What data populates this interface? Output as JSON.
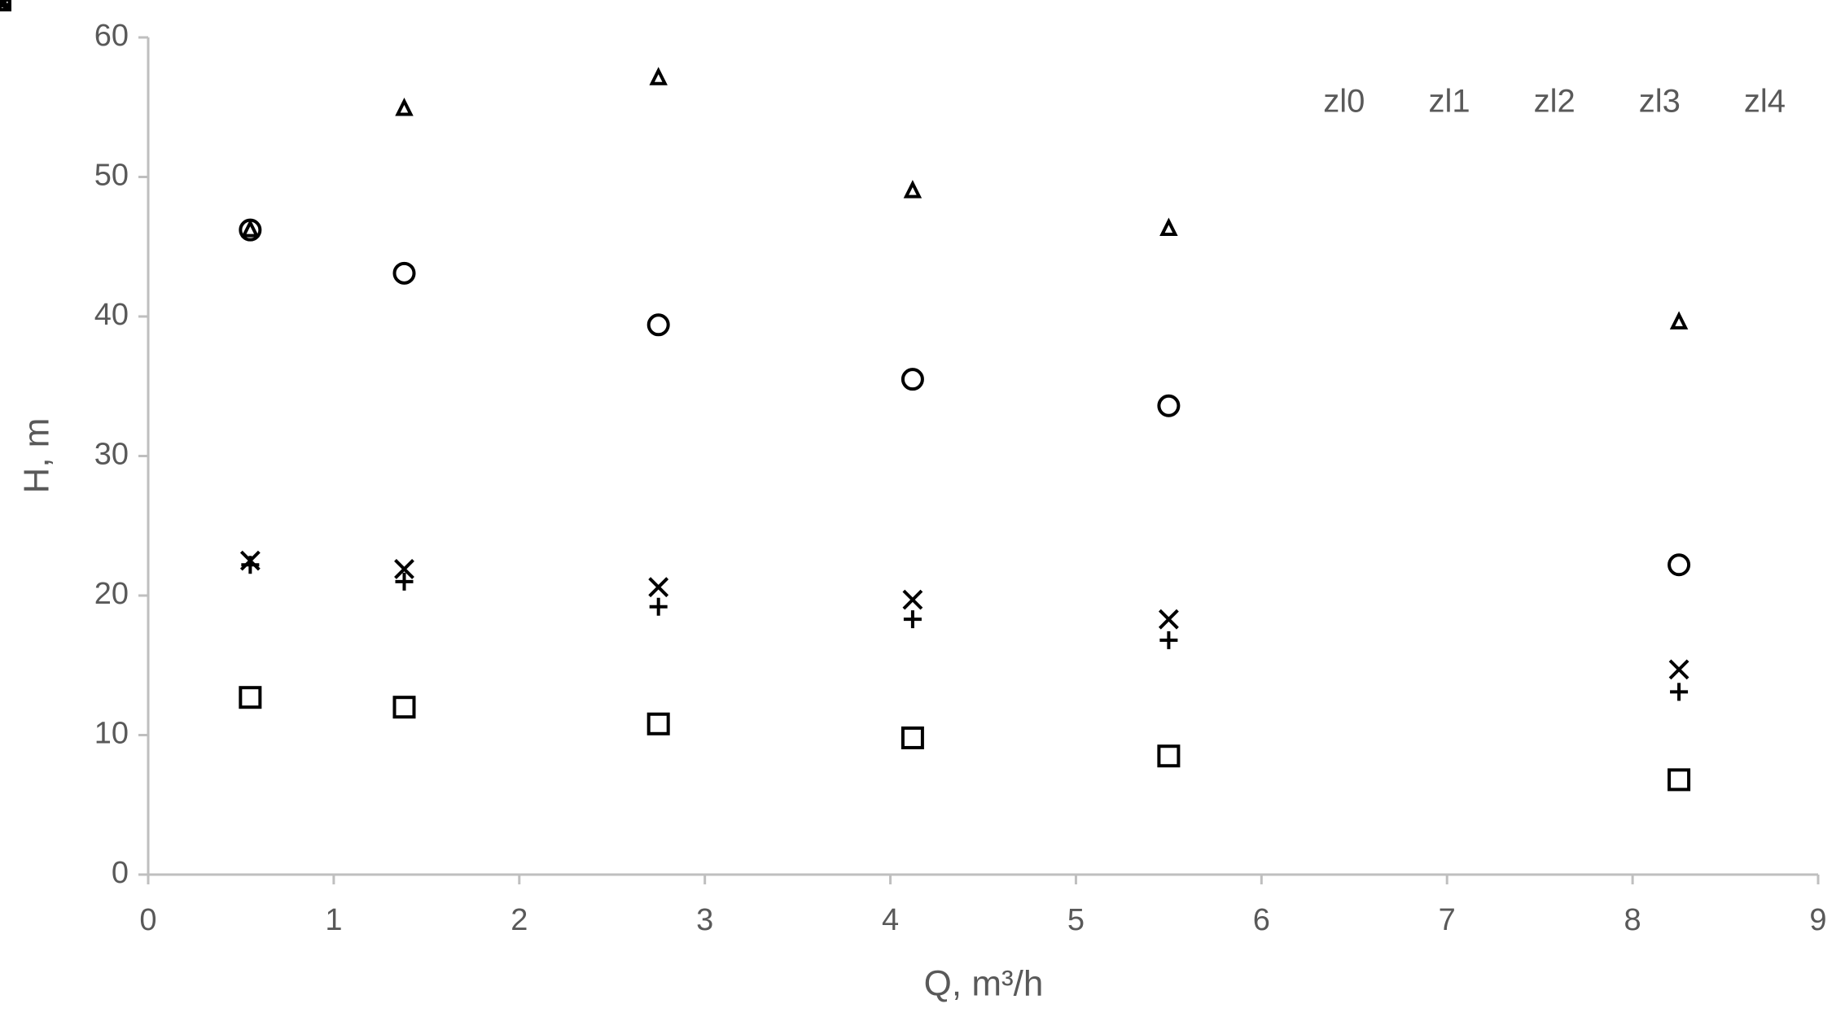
{
  "chart_data": {
    "type": "scatter",
    "x_label": "Q, m³/h",
    "y_label": "H, m",
    "xlim": [
      0,
      9
    ],
    "xticks": [
      0,
      1,
      2,
      3,
      4,
      5,
      6,
      7,
      8,
      9
    ],
    "ylim": [
      0,
      60
    ],
    "yticks": [
      0,
      10,
      20,
      30,
      40,
      50,
      60
    ],
    "grid": false,
    "legend": "top-right",
    "series": [
      {
        "name": "zl0",
        "marker": "plus",
        "color": "#000000",
        "x": [
          0.55,
          1.38,
          2.75,
          4.12,
          5.5,
          8.25
        ],
        "values": [
          22.2,
          21,
          19.2,
          18.3,
          16.8,
          13.1
        ]
      },
      {
        "name": "zl1",
        "marker": "triangle",
        "color": "#000000",
        "x": [
          0.55,
          1.38,
          2.75,
          4.12,
          5.5,
          8.25
        ],
        "values": [
          46.2,
          54.9,
          57.1,
          49,
          46.3,
          39.6
        ]
      },
      {
        "name": "zl2",
        "marker": "x",
        "color": "#000000",
        "x": [
          0.55,
          1.38,
          2.75,
          4.12,
          5.5,
          8.25
        ],
        "values": [
          22.5,
          21.9,
          20.6,
          19.7,
          18.3,
          14.7
        ]
      },
      {
        "name": "zl3",
        "marker": "circle",
        "color": "#000000",
        "x": [
          0.55,
          1.38,
          2.75,
          4.12,
          5.5,
          8.25
        ],
        "values": [
          46.2,
          43.1,
          39.4,
          35.5,
          33.6,
          22.2
        ]
      },
      {
        "name": "zl4",
        "marker": "square",
        "color": "#000000",
        "x": [
          0.55,
          1.38,
          2.75,
          4.12,
          5.5,
          8.25
        ],
        "values": [
          12.7,
          12,
          10.8,
          9.8,
          8.5,
          6.8
        ]
      }
    ]
  }
}
